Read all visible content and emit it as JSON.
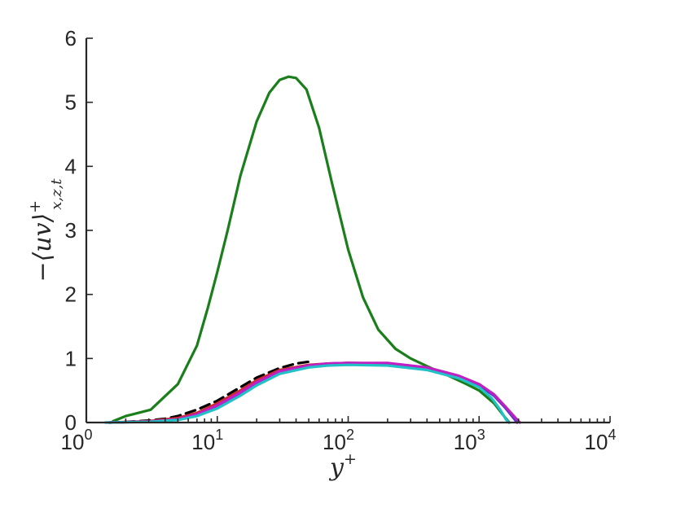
{
  "chart_data": {
    "type": "line",
    "title": "",
    "xlabel": "y+",
    "ylabel": "-⟨uv⟩+x,z,t",
    "xscale": "log",
    "xlim": [
      1,
      10000
    ],
    "ylim": [
      0,
      6
    ],
    "grid": false,
    "legend": "none",
    "x_ticks": [
      {
        "base": "10",
        "exp": "0",
        "value": 1
      },
      {
        "base": "10",
        "exp": "1",
        "value": 10
      },
      {
        "base": "10",
        "exp": "2",
        "value": 100
      },
      {
        "base": "10",
        "exp": "3",
        "value": 1000
      },
      {
        "base": "10",
        "exp": "4",
        "value": 10000
      }
    ],
    "y_ticks": [
      {
        "label": "0",
        "value": 0
      },
      {
        "label": "1",
        "value": 1
      },
      {
        "label": "2",
        "value": 2
      },
      {
        "label": "3",
        "value": 3
      },
      {
        "label": "4",
        "value": 4
      },
      {
        "label": "5",
        "value": 5
      },
      {
        "label": "6",
        "value": 6
      }
    ],
    "series": [
      {
        "color": "#1a7f1a",
        "dash": "solid",
        "points": [
          [
            1.6,
            0.02
          ],
          [
            2,
            0.1
          ],
          [
            3.1,
            0.2
          ],
          [
            5,
            0.6
          ],
          [
            7,
            1.2
          ],
          [
            8.5,
            1.8
          ],
          [
            10,
            2.35
          ],
          [
            12,
            3.0
          ],
          [
            15,
            3.85
          ],
          [
            20,
            4.7
          ],
          [
            25,
            5.15
          ],
          [
            30,
            5.35
          ],
          [
            35,
            5.4
          ],
          [
            40,
            5.38
          ],
          [
            48,
            5.2
          ],
          [
            60,
            4.6
          ],
          [
            75,
            3.75
          ],
          [
            100,
            2.7
          ],
          [
            130,
            1.95
          ],
          [
            170,
            1.45
          ],
          [
            230,
            1.15
          ],
          [
            300,
            1.0
          ],
          [
            400,
            0.88
          ],
          [
            600,
            0.72
          ],
          [
            800,
            0.6
          ],
          [
            1000,
            0.5
          ],
          [
            1300,
            0.3
          ],
          [
            1550,
            0.1
          ],
          [
            1700,
            0.0
          ]
        ]
      },
      {
        "color": "#000000",
        "dash": "dashed",
        "points": [
          [
            1.5,
            0.0
          ],
          [
            2,
            0.01
          ],
          [
            3,
            0.03
          ],
          [
            4,
            0.06
          ],
          [
            5,
            0.1
          ],
          [
            7,
            0.2
          ],
          [
            10,
            0.34
          ],
          [
            15,
            0.55
          ],
          [
            20,
            0.7
          ],
          [
            30,
            0.85
          ],
          [
            40,
            0.92
          ],
          [
            50,
            0.95
          ]
        ]
      },
      {
        "color": "#cc2a2a",
        "dash": "solid",
        "points": [
          [
            1.5,
            0.0
          ],
          [
            3,
            0.02
          ],
          [
            5,
            0.07
          ],
          [
            7,
            0.15
          ],
          [
            10,
            0.3
          ],
          [
            15,
            0.5
          ],
          [
            20,
            0.66
          ],
          [
            30,
            0.82
          ],
          [
            50,
            0.9
          ],
          [
            70,
            0.92
          ],
          [
            100,
            0.93
          ],
          [
            200,
            0.92
          ],
          [
            400,
            0.85
          ],
          [
            700,
            0.72
          ],
          [
            1000,
            0.58
          ],
          [
            1300,
            0.42
          ],
          [
            1600,
            0.22
          ],
          [
            1850,
            0.06
          ],
          [
            1950,
            0.0
          ]
        ]
      },
      {
        "color": "#4b3ec8",
        "dash": "solid",
        "points": [
          [
            1.5,
            0.0
          ],
          [
            3,
            0.015
          ],
          [
            5,
            0.05
          ],
          [
            7,
            0.12
          ],
          [
            10,
            0.26
          ],
          [
            15,
            0.46
          ],
          [
            20,
            0.62
          ],
          [
            30,
            0.8
          ],
          [
            50,
            0.89
          ],
          [
            70,
            0.92
          ],
          [
            100,
            0.93
          ],
          [
            200,
            0.92
          ],
          [
            400,
            0.85
          ],
          [
            700,
            0.72
          ],
          [
            1000,
            0.58
          ],
          [
            1300,
            0.42
          ],
          [
            1600,
            0.22
          ],
          [
            1850,
            0.06
          ],
          [
            1950,
            0.0
          ]
        ]
      },
      {
        "color": "#c21fc2",
        "dash": "solid",
        "points": [
          [
            1.5,
            0.0
          ],
          [
            3,
            0.015
          ],
          [
            5,
            0.05
          ],
          [
            7,
            0.13
          ],
          [
            10,
            0.27
          ],
          [
            15,
            0.47
          ],
          [
            20,
            0.63
          ],
          [
            30,
            0.8
          ],
          [
            50,
            0.89
          ],
          [
            70,
            0.92
          ],
          [
            100,
            0.93
          ],
          [
            200,
            0.93
          ],
          [
            400,
            0.86
          ],
          [
            700,
            0.73
          ],
          [
            1000,
            0.6
          ],
          [
            1300,
            0.44
          ],
          [
            1600,
            0.24
          ],
          [
            1900,
            0.07
          ],
          [
            2050,
            0.0
          ]
        ]
      },
      {
        "color": "#22c1c8",
        "dash": "solid",
        "points": [
          [
            1.4,
            0.0
          ],
          [
            3,
            0.01
          ],
          [
            5,
            0.04
          ],
          [
            7,
            0.1
          ],
          [
            10,
            0.22
          ],
          [
            15,
            0.42
          ],
          [
            20,
            0.58
          ],
          [
            30,
            0.76
          ],
          [
            50,
            0.86
          ],
          [
            70,
            0.89
          ],
          [
            100,
            0.9
          ],
          [
            200,
            0.89
          ],
          [
            400,
            0.82
          ],
          [
            700,
            0.69
          ],
          [
            1000,
            0.55
          ],
          [
            1250,
            0.38
          ],
          [
            1450,
            0.2
          ],
          [
            1600,
            0.05
          ],
          [
            1680,
            0.0
          ]
        ]
      }
    ]
  }
}
